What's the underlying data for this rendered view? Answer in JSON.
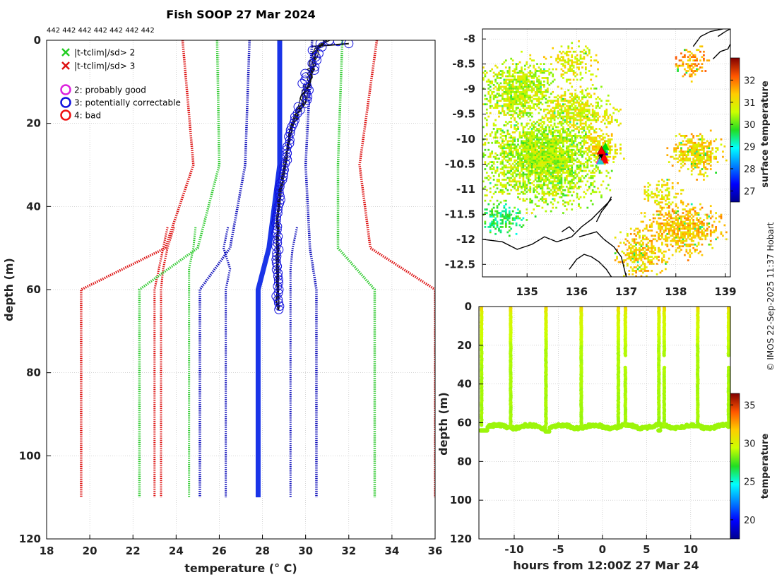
{
  "title": "Fish SOOP 27 Mar 2024",
  "footer": "© IMOS 22-Sep-2025 11:37 Hobart",
  "chart_data": [
    {
      "id": "profile",
      "type": "line",
      "xlabel": "temperature (° C)",
      "ylabel": "depth (m)",
      "xlim": [
        18,
        36
      ],
      "ylim": [
        120,
        0
      ],
      "xticks": [
        18,
        20,
        22,
        24,
        26,
        28,
        30,
        32,
        34,
        36
      ],
      "yticks": [
        0,
        20,
        40,
        60,
        80,
        100,
        120
      ],
      "top_note": "442 442 442 442 442 442 442",
      "legend": [
        {
          "label": "|t-tclim|/sd> 2",
          "marker": "x",
          "color": "#22cc22"
        },
        {
          "label": "|t-tclim|/sd> 3",
          "marker": "x",
          "color": "#dd1111"
        },
        {
          "label": "2: probably good",
          "marker": "o",
          "color": "#dd22dd"
        },
        {
          "label": "3: potentially correctable",
          "marker": "o",
          "color": "#1111dd"
        },
        {
          "label": "4: bad",
          "marker": "o",
          "color": "#ee1111"
        }
      ],
      "depths": [
        0,
        30,
        50,
        60,
        110
      ],
      "envelopes": [
        {
          "name": "mean",
          "color": "#1a34e8",
          "style": "solid",
          "temps": [
            28.8,
            28.8,
            28.3,
            27.8,
            27.8
          ]
        },
        {
          "name": "-1sd",
          "color": "#1111bb",
          "style": "dotted",
          "temps": [
            27.4,
            27.2,
            26.5,
            25.1,
            25.1
          ]
        },
        {
          "name": "+1sd",
          "color": "#1111bb",
          "style": "dotted",
          "temps": [
            30.3,
            30.0,
            30.2,
            30.5,
            30.5
          ]
        },
        {
          "name": "-2sd",
          "color": "#33cc33",
          "style": "dotted",
          "temps": [
            25.9,
            26.0,
            25.0,
            22.3,
            22.3
          ]
        },
        {
          "name": "+2sd",
          "color": "#33cc33",
          "style": "dotted",
          "temps": [
            31.7,
            31.5,
            31.5,
            33.2,
            33.2
          ]
        },
        {
          "name": "-3sd",
          "color": "#dd1111",
          "style": "dotted",
          "temps": [
            24.3,
            24.8,
            23.5,
            19.6,
            19.6
          ]
        },
        {
          "name": "+3sd",
          "color": "#dd1111",
          "style": "dotted",
          "temps": [
            33.3,
            32.5,
            33.0,
            36.0,
            36.0
          ]
        }
      ],
      "inner_envelopes": [
        {
          "color": "#1111bb",
          "temps": [
            26.4,
            26.2,
            26.5,
            26.3,
            26.3
          ],
          "depths": [
            45,
            50,
            55,
            60,
            110
          ]
        },
        {
          "color": "#1111bb",
          "temps": [
            29.6,
            29.4,
            29.3,
            29.3,
            29.3
          ],
          "depths": [
            45,
            50,
            55,
            60,
            110
          ]
        },
        {
          "color": "#33cc33",
          "temps": [
            24.9,
            24.8,
            24.6,
            24.6,
            24.6
          ],
          "depths": [
            45,
            50,
            55,
            60,
            110
          ]
        },
        {
          "color": "#dd1111",
          "temps": [
            23.6,
            23.4,
            23.2,
            23.0,
            23.0
          ],
          "depths": [
            45,
            50,
            55,
            60,
            110
          ]
        },
        {
          "color": "#dd1111",
          "temps": [
            23.9,
            23.6,
            23.4,
            23.3,
            23.3
          ],
          "depths": [
            45,
            50,
            55,
            60,
            110
          ]
        }
      ],
      "observed": {
        "color": "#111111",
        "circle_color": "#1111dd",
        "depths": [
          0,
          1,
          2,
          4,
          6,
          8,
          10,
          12,
          14,
          16,
          18,
          20,
          22,
          25,
          28,
          31,
          34,
          37,
          40,
          44,
          48,
          52,
          56,
          60,
          63,
          65
        ],
        "temps": [
          31.0,
          30.7,
          30.5,
          30.4,
          30.3,
          30.2,
          30.1,
          30.0,
          29.9,
          29.8,
          29.6,
          29.4,
          29.3,
          29.2,
          29.1,
          29.0,
          28.9,
          28.8,
          28.75,
          28.7,
          28.7,
          28.7,
          28.7,
          28.7,
          28.7,
          28.75
        ]
      }
    },
    {
      "id": "map",
      "type": "heatmap",
      "colorbar_label": "surface temperature",
      "xlim": [
        134.1,
        139.1
      ],
      "ylim": [
        -12.75,
        -7.8
      ],
      "xticks": [
        135,
        136,
        137,
        138,
        139
      ],
      "yticks": [
        -8,
        -8.5,
        -9,
        -9.5,
        -10,
        -10.5,
        -11,
        -11.5,
        -12,
        -12.5
      ],
      "clim": [
        26.5,
        33
      ],
      "cticks": [
        27,
        28,
        29,
        30,
        31,
        32
      ],
      "track_position": {
        "lon": 136.5,
        "lat": -10.3
      }
    },
    {
      "id": "timeseries",
      "type": "scatter",
      "xlabel": "hours from 12:00Z 27 Mar 24",
      "ylabel": "depth (m)",
      "colorbar_label": "temperature",
      "xlim": [
        -14,
        14.5
      ],
      "ylim": [
        120,
        0
      ],
      "xticks": [
        -10,
        -5,
        0,
        5,
        10
      ],
      "yticks": [
        0,
        20,
        40,
        60,
        80,
        100,
        120
      ],
      "clim": [
        17.5,
        36.5
      ],
      "cticks": [
        20,
        25,
        30,
        35
      ],
      "casts_hours": [
        -13.7,
        -10.4,
        -6.4,
        -2.4,
        1.8,
        2.6,
        6.4,
        7.0,
        10.8,
        14.3
      ],
      "bottom_depth": 62
    }
  ]
}
